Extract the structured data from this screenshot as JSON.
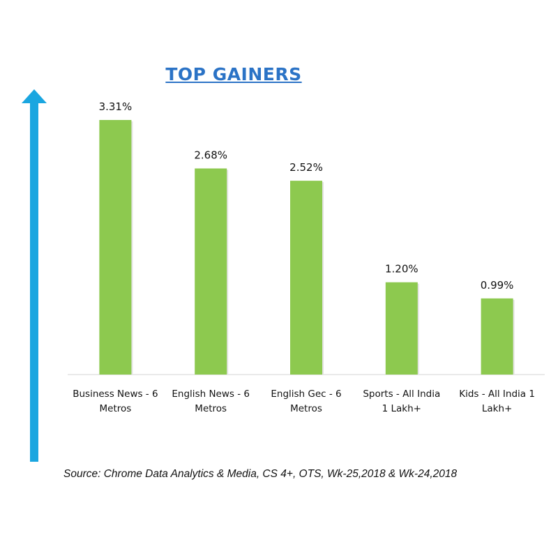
{
  "chart_data": {
    "type": "bar",
    "title": "TOP GAINERS",
    "categories": [
      [
        "Business News - 6",
        "Metros"
      ],
      [
        "English News - 6",
        "Metros"
      ],
      [
        "English Gec - 6",
        "Metros"
      ],
      [
        "Sports - All  India",
        "1 Lakh+"
      ],
      [
        "Kids - All India 1",
        "Lakh+"
      ]
    ],
    "values": [
      3.31,
      2.68,
      2.52,
      1.2,
      0.99
    ],
    "data_labels": [
      "3.31%",
      "2.68%",
      "2.52%",
      "1.20%",
      "0.99%"
    ],
    "ylim": [
      0,
      3.8
    ],
    "grid": false,
    "legend": "none",
    "bar_color": "#8dc94f",
    "arrow_color": "#1aa6e0",
    "title_color": "#2b73c6"
  },
  "source": "Source: Chrome Data Analytics & Media, CS 4+,  OTS, Wk-25,2018 & Wk-24,2018"
}
